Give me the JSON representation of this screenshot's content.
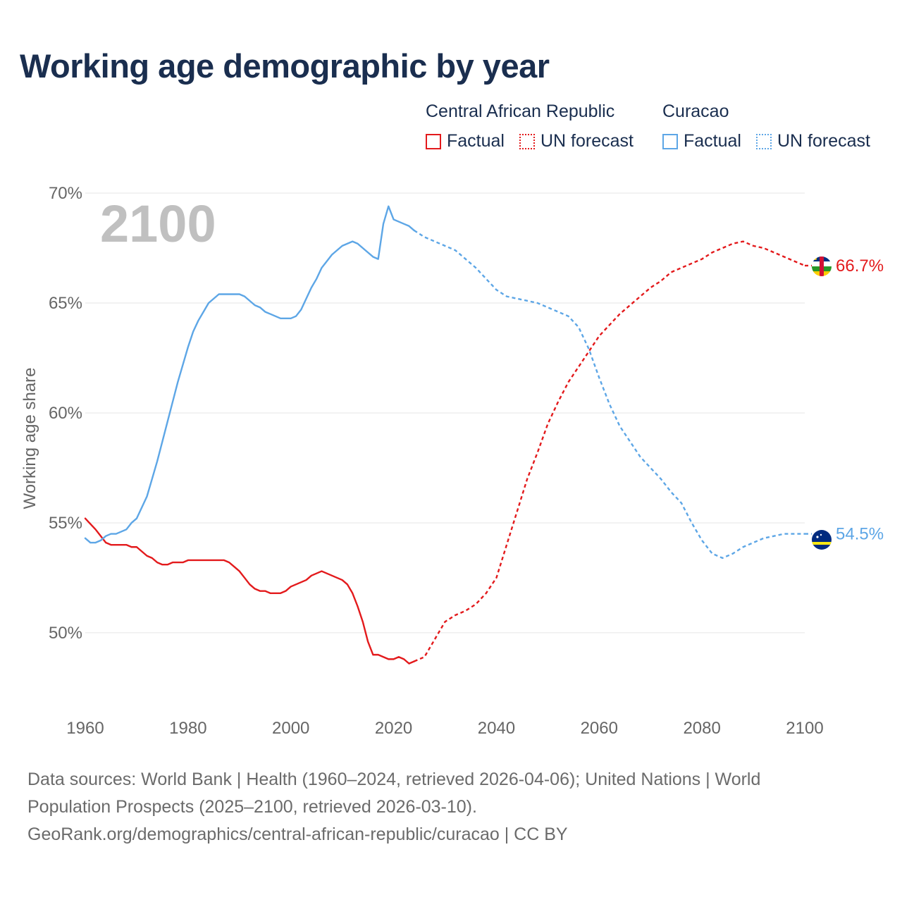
{
  "title": "Working age demographic by year",
  "legend": {
    "groups": [
      {
        "name": "Central African Republic",
        "color": "#e31a1c",
        "factual_label": "Factual",
        "forecast_label": "UN forecast"
      },
      {
        "name": "Curacao",
        "color": "#5da6e6",
        "factual_label": "Factual",
        "forecast_label": "UN forecast"
      }
    ]
  },
  "footer": {
    "line1": "Data sources: World Bank | Health (1960–2024, retrieved 2026-04-06); United Nations | World",
    "line2": "Population Prospects (2025–2100, retrieved 2026-03-10).",
    "line3": "GeoRank.org/demographics/central-african-republic/curacao | CC BY"
  },
  "chart_data": {
    "type": "line",
    "title": "Working age demographic by year",
    "ylabel": "Working age share",
    "xlabel": "",
    "year_label": "2100",
    "xlim": [
      1960,
      2100
    ],
    "ylim": [
      46.6,
      70
    ],
    "x_ticks": [
      1960,
      1980,
      2000,
      2020,
      2040,
      2060,
      2080,
      2100
    ],
    "y_ticks": [
      50,
      55,
      60,
      65,
      70
    ],
    "y_tick_labels": [
      "50%",
      "55%",
      "60%",
      "65%",
      "70%"
    ],
    "forecast_start": 2024,
    "grid": true,
    "series": [
      {
        "name": "Central African Republic",
        "color": "#e31a1c",
        "end_label": "66.7%",
        "points": [
          [
            1960,
            55.2
          ],
          [
            1962,
            54.7
          ],
          [
            1963,
            54.4
          ],
          [
            1964,
            54.1
          ],
          [
            1965,
            54.0
          ],
          [
            1968,
            54.0
          ],
          [
            1969,
            53.9
          ],
          [
            1970,
            53.9
          ],
          [
            1971,
            53.7
          ],
          [
            1972,
            53.5
          ],
          [
            1973,
            53.4
          ],
          [
            1974,
            53.2
          ],
          [
            1975,
            53.1
          ],
          [
            1976,
            53.1
          ],
          [
            1977,
            53.2
          ],
          [
            1979,
            53.2
          ],
          [
            1980,
            53.3
          ],
          [
            1987,
            53.3
          ],
          [
            1988,
            53.2
          ],
          [
            1989,
            53.0
          ],
          [
            1990,
            52.8
          ],
          [
            1991,
            52.5
          ],
          [
            1992,
            52.2
          ],
          [
            1993,
            52.0
          ],
          [
            1994,
            51.9
          ],
          [
            1995,
            51.9
          ],
          [
            1996,
            51.8
          ],
          [
            1998,
            51.8
          ],
          [
            1999,
            51.9
          ],
          [
            2000,
            52.1
          ],
          [
            2001,
            52.2
          ],
          [
            2002,
            52.3
          ],
          [
            2003,
            52.4
          ],
          [
            2004,
            52.6
          ],
          [
            2005,
            52.7
          ],
          [
            2006,
            52.8
          ],
          [
            2007,
            52.7
          ],
          [
            2008,
            52.6
          ],
          [
            2009,
            52.5
          ],
          [
            2010,
            52.4
          ],
          [
            2011,
            52.2
          ],
          [
            2012,
            51.8
          ],
          [
            2013,
            51.2
          ],
          [
            2014,
            50.5
          ],
          [
            2015,
            49.6
          ],
          [
            2016,
            49.0
          ],
          [
            2017,
            49.0
          ],
          [
            2018,
            48.9
          ],
          [
            2019,
            48.8
          ],
          [
            2020,
            48.8
          ],
          [
            2021,
            48.9
          ],
          [
            2022,
            48.8
          ],
          [
            2023,
            48.6
          ],
          [
            2024,
            48.7
          ],
          [
            2026,
            48.9
          ],
          [
            2028,
            49.7
          ],
          [
            2030,
            50.5
          ],
          [
            2032,
            50.8
          ],
          [
            2034,
            51.0
          ],
          [
            2036,
            51.3
          ],
          [
            2038,
            51.8
          ],
          [
            2040,
            52.5
          ],
          [
            2042,
            54.0
          ],
          [
            2044,
            55.5
          ],
          [
            2046,
            57.0
          ],
          [
            2048,
            58.2
          ],
          [
            2050,
            59.5
          ],
          [
            2052,
            60.5
          ],
          [
            2054,
            61.4
          ],
          [
            2056,
            62.1
          ],
          [
            2058,
            62.8
          ],
          [
            2060,
            63.5
          ],
          [
            2062,
            64.0
          ],
          [
            2064,
            64.5
          ],
          [
            2066,
            64.9
          ],
          [
            2068,
            65.3
          ],
          [
            2070,
            65.7
          ],
          [
            2072,
            66.0
          ],
          [
            2074,
            66.4
          ],
          [
            2076,
            66.6
          ],
          [
            2078,
            66.8
          ],
          [
            2080,
            67.0
          ],
          [
            2082,
            67.3
          ],
          [
            2084,
            67.5
          ],
          [
            2086,
            67.7
          ],
          [
            2088,
            67.8
          ],
          [
            2090,
            67.6
          ],
          [
            2092,
            67.5
          ],
          [
            2094,
            67.3
          ],
          [
            2096,
            67.1
          ],
          [
            2098,
            66.9
          ],
          [
            2100,
            66.7
          ]
        ]
      },
      {
        "name": "Curacao",
        "color": "#5da6e6",
        "end_label": "54.5%",
        "points": [
          [
            1960,
            54.3
          ],
          [
            1961,
            54.1
          ],
          [
            1962,
            54.1
          ],
          [
            1963,
            54.2
          ],
          [
            1964,
            54.4
          ],
          [
            1965,
            54.5
          ],
          [
            1966,
            54.5
          ],
          [
            1967,
            54.6
          ],
          [
            1968,
            54.7
          ],
          [
            1969,
            55.0
          ],
          [
            1970,
            55.2
          ],
          [
            1971,
            55.7
          ],
          [
            1972,
            56.2
          ],
          [
            1973,
            57.0
          ],
          [
            1974,
            57.8
          ],
          [
            1975,
            58.7
          ],
          [
            1976,
            59.6
          ],
          [
            1977,
            60.5
          ],
          [
            1978,
            61.4
          ],
          [
            1979,
            62.2
          ],
          [
            1980,
            63.0
          ],
          [
            1981,
            63.7
          ],
          [
            1982,
            64.2
          ],
          [
            1983,
            64.6
          ],
          [
            1984,
            65.0
          ],
          [
            1985,
            65.2
          ],
          [
            1986,
            65.4
          ],
          [
            1990,
            65.4
          ],
          [
            1991,
            65.3
          ],
          [
            1992,
            65.1
          ],
          [
            1993,
            64.9
          ],
          [
            1994,
            64.8
          ],
          [
            1995,
            64.6
          ],
          [
            1996,
            64.5
          ],
          [
            1997,
            64.4
          ],
          [
            1998,
            64.3
          ],
          [
            2000,
            64.3
          ],
          [
            2001,
            64.4
          ],
          [
            2002,
            64.7
          ],
          [
            2003,
            65.2
          ],
          [
            2004,
            65.7
          ],
          [
            2005,
            66.1
          ],
          [
            2006,
            66.6
          ],
          [
            2007,
            66.9
          ],
          [
            2008,
            67.2
          ],
          [
            2009,
            67.4
          ],
          [
            2010,
            67.6
          ],
          [
            2011,
            67.7
          ],
          [
            2012,
            67.8
          ],
          [
            2013,
            67.7
          ],
          [
            2014,
            67.5
          ],
          [
            2015,
            67.3
          ],
          [
            2016,
            67.1
          ],
          [
            2017,
            67.0
          ],
          [
            2018,
            68.6
          ],
          [
            2019,
            69.4
          ],
          [
            2020,
            68.8
          ],
          [
            2022,
            68.6
          ],
          [
            2023,
            68.5
          ],
          [
            2024,
            68.3
          ],
          [
            2026,
            68.0
          ],
          [
            2028,
            67.8
          ],
          [
            2030,
            67.6
          ],
          [
            2032,
            67.4
          ],
          [
            2034,
            67.0
          ],
          [
            2036,
            66.6
          ],
          [
            2038,
            66.1
          ],
          [
            2040,
            65.6
          ],
          [
            2042,
            65.3
          ],
          [
            2044,
            65.2
          ],
          [
            2046,
            65.1
          ],
          [
            2048,
            65.0
          ],
          [
            2050,
            64.8
          ],
          [
            2052,
            64.6
          ],
          [
            2054,
            64.4
          ],
          [
            2056,
            63.9
          ],
          [
            2058,
            62.9
          ],
          [
            2060,
            61.6
          ],
          [
            2062,
            60.4
          ],
          [
            2064,
            59.4
          ],
          [
            2066,
            58.7
          ],
          [
            2068,
            58.0
          ],
          [
            2070,
            57.5
          ],
          [
            2072,
            57.0
          ],
          [
            2074,
            56.4
          ],
          [
            2076,
            55.9
          ],
          [
            2078,
            55.0
          ],
          [
            2080,
            54.2
          ],
          [
            2082,
            53.6
          ],
          [
            2084,
            53.4
          ],
          [
            2086,
            53.6
          ],
          [
            2088,
            53.9
          ],
          [
            2090,
            54.1
          ],
          [
            2092,
            54.3
          ],
          [
            2094,
            54.4
          ],
          [
            2096,
            54.5
          ],
          [
            2098,
            54.5
          ],
          [
            2100,
            54.5
          ]
        ]
      }
    ]
  }
}
